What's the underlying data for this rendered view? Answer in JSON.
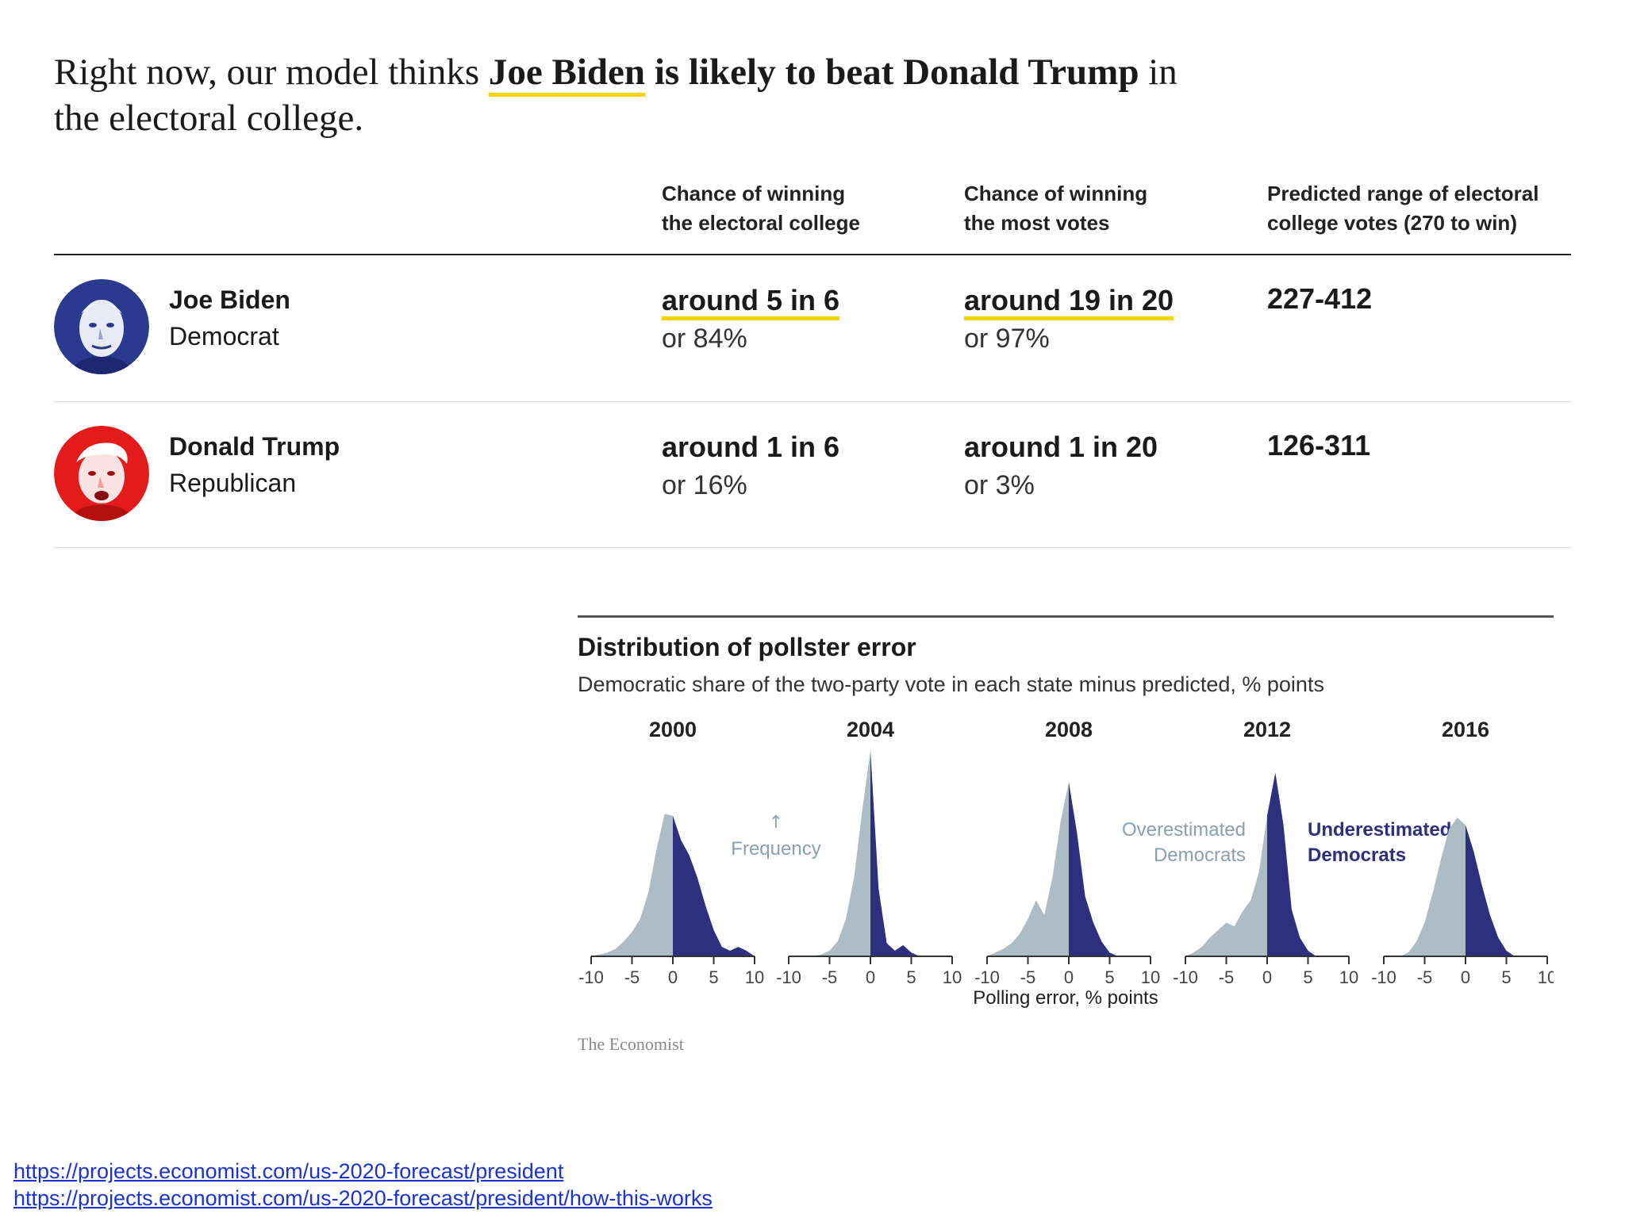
{
  "headline": {
    "part1": "Right now, our model thinks ",
    "part2": "Joe Biden",
    "part3": " is likely to beat Donald Trump",
    "part4": " in the electoral college."
  },
  "table": {
    "col_ec_line1": "Chance of winning",
    "col_ec_line2": "the electoral college",
    "col_pv_line1": "Chance of winning",
    "col_pv_line2": "the most votes",
    "col_range_line1": "Predicted range of electoral",
    "col_range_line2": "college votes (270 to win)",
    "rows": [
      {
        "name": "Joe Biden",
        "party": "Democrat",
        "ec_odds": "around 5 in 6",
        "ec_pct": "or 84%",
        "pv_odds": "around 19 in 20",
        "pv_pct": "or 97%",
        "range": "227-412",
        "avatar_color": "#2b3a8f"
      },
      {
        "name": "Donald Trump",
        "party": "Republican",
        "ec_odds": "around 1 in 6",
        "ec_pct": "or 16%",
        "pv_odds": "around 1 in 20",
        "pv_pct": "or 3%",
        "range": "126-311",
        "avatar_color": "#e31b1b"
      }
    ]
  },
  "chart_data": {
    "type": "area",
    "title": "Distribution of pollster error",
    "subtitle": "Democratic share of the two-party vote in each state minus predicted, % points",
    "xlabel": "Polling error, % points",
    "xlim": [
      -10,
      10
    ],
    "xticks": [
      -10,
      -5,
      0,
      5,
      10
    ],
    "source": "The Economist",
    "legend": {
      "over_line1": "Overestimated",
      "over_line2": "Democrats",
      "under_line1": "Underestimated",
      "under_line2": "Democrats"
    },
    "frequency_label": "Frequency",
    "colors": {
      "overestimated": "#aebcc6",
      "underestimated": "#2e2f7f"
    },
    "x": [
      -10,
      -9,
      -8,
      -7,
      -6,
      -5,
      -4,
      -3,
      -2,
      -1,
      0,
      1,
      2,
      3,
      4,
      5,
      6,
      7,
      8,
      9,
      10
    ],
    "series": [
      {
        "name": "2000",
        "values": [
          0,
          0.01,
          0.02,
          0.04,
          0.08,
          0.13,
          0.2,
          0.34,
          0.57,
          0.76,
          0.75,
          0.62,
          0.54,
          0.42,
          0.27,
          0.14,
          0.05,
          0.03,
          0.05,
          0.03,
          0
        ]
      },
      {
        "name": "2004",
        "values": [
          0,
          0,
          0,
          0,
          0.01,
          0.03,
          0.08,
          0.2,
          0.42,
          0.78,
          1.1,
          0.36,
          0.07,
          0.03,
          0.06,
          0.02,
          0,
          0,
          0,
          0,
          0
        ]
      },
      {
        "name": "2008",
        "values": [
          0,
          0.02,
          0.04,
          0.07,
          0.12,
          0.2,
          0.3,
          0.22,
          0.42,
          0.72,
          0.93,
          0.66,
          0.32,
          0.18,
          0.08,
          0.02,
          0,
          0,
          0,
          0,
          0
        ]
      },
      {
        "name": "2012",
        "values": [
          0,
          0.02,
          0.05,
          0.1,
          0.14,
          0.18,
          0.16,
          0.24,
          0.3,
          0.45,
          0.75,
          0.98,
          0.7,
          0.25,
          0.1,
          0.03,
          0,
          0,
          0,
          0,
          0
        ]
      },
      {
        "name": "2016",
        "values": [
          0,
          0,
          0,
          0.02,
          0.08,
          0.18,
          0.34,
          0.52,
          0.68,
          0.74,
          0.7,
          0.56,
          0.38,
          0.22,
          0.1,
          0.03,
          0,
          0,
          0,
          0,
          0
        ]
      }
    ]
  },
  "links": [
    "https://projects.economist.com/us-2020-forecast/president",
    "https://projects.economist.com/us-2020-forecast/president/how-this-works"
  ]
}
